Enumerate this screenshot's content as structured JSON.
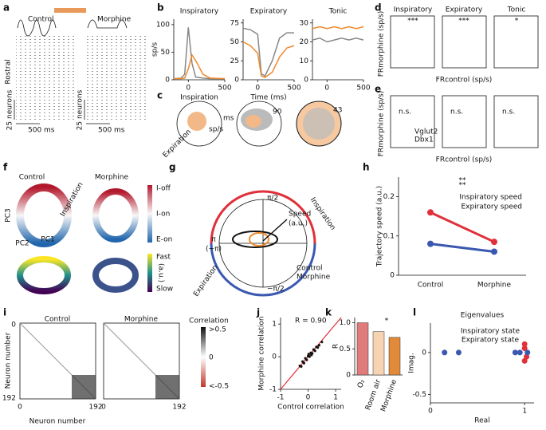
{
  "labels": {
    "panels": [
      "a",
      "b",
      "c",
      "d",
      "e",
      "f",
      "g",
      "h",
      "i",
      "j",
      "k",
      "l"
    ],
    "text": [
      "Control",
      "Morphine",
      "Rostral",
      "25 neurons",
      "500 ms",
      "25 neurons",
      "500 ms",
      "Inspiration",
      "Expiration",
      "sp/s",
      "ms",
      "90",
      "43",
      "Inspiratory",
      "Expiratory",
      "Tonic",
      "***",
      "***",
      "*",
      "FRmorphine (sp/s)",
      "FRcontrol (sp/s)",
      "n.s.",
      "n.s.",
      "n.s.",
      "Vglut2",
      "Dbx1",
      "FRmorphine (sp/s)",
      "FRcontrol (sp/s)",
      "Control",
      "Morphine",
      "Inspiration",
      "PC1",
      "PC2",
      "PC3",
      "I-off",
      "I-on",
      "E-on",
      "Fast",
      "Slow",
      "(a.u.)",
      "π/2",
      "π",
      "(−π)",
      "−π/2",
      "Speed",
      "(a.u.)",
      "Control",
      "Morphine",
      "Inspiration",
      "Expiration",
      "Control",
      "Morphine",
      "Correlation",
      ">0.5",
      "0",
      "<-0.5",
      "Neuron number",
      "Neuron number",
      "0",
      "192",
      "0",
      "192",
      "0",
      "192"
    ]
  },
  "chart_data": [
    {
      "type": "line",
      "title": "Inspiratory",
      "ylabel": "sp/s",
      "x": [
        -200,
        -100,
        -50,
        0,
        50,
        100,
        200,
        300,
        500
      ],
      "xlim": [
        -200,
        500
      ],
      "xticks": [
        0,
        500
      ],
      "ylim": [
        0,
        110
      ],
      "yticks": [
        0,
        50,
        100
      ],
      "series": [
        {
          "name": "Control",
          "color": "#888888",
          "values": [
            2,
            3,
            10,
            95,
            30,
            5,
            3,
            2,
            2
          ]
        },
        {
          "name": "Morphine",
          "color": "#f08a2c",
          "values": [
            2,
            2,
            3,
            20,
            45,
            35,
            10,
            3,
            2
          ]
        }
      ]
    },
    {
      "type": "line",
      "title": "Expiratory",
      "xlabel": "Time (ms)",
      "x": [
        -200,
        -100,
        0,
        50,
        100,
        200,
        300,
        400,
        500
      ],
      "xlim": [
        -200,
        500
      ],
      "xticks": [
        0,
        500
      ],
      "ylim": [
        0,
        80
      ],
      "yticks": [
        0,
        25,
        50,
        75
      ],
      "series": [
        {
          "name": "Control",
          "color": "#888888",
          "values": [
            68,
            66,
            60,
            8,
            5,
            25,
            55,
            62,
            62
          ]
        },
        {
          "name": "Morphine",
          "color": "#f08a2c",
          "values": [
            50,
            45,
            35,
            5,
            3,
            10,
            30,
            42,
            45
          ]
        }
      ]
    },
    {
      "type": "line",
      "title": "Tonic",
      "x": [
        -200,
        -100,
        0,
        100,
        200,
        300,
        400,
        500
      ],
      "xlim": [
        -200,
        500
      ],
      "xticks": [
        0,
        500
      ],
      "ylim": [
        0,
        32
      ],
      "yticks": [
        0,
        10,
        20,
        30
      ],
      "series": [
        {
          "name": "Control",
          "color": "#888888",
          "values": [
            21,
            22,
            20,
            21,
            22,
            21,
            22,
            21
          ]
        },
        {
          "name": "Morphine",
          "color": "#f08a2c",
          "values": [
            27,
            28,
            27,
            28,
            27,
            28,
            27,
            28
          ]
        }
      ]
    },
    {
      "type": "line",
      "ylabel": "Trajectory speed (a.u.)",
      "categories": [
        "Control",
        "Morphine"
      ],
      "ylim": [
        0,
        0.25
      ],
      "yticks": [
        0,
        0.1,
        0.2
      ],
      "annotations": [
        "**",
        "**"
      ],
      "series": [
        {
          "name": "Inspiratory speed",
          "color": "#e0303a",
          "values": [
            0.16,
            0.085
          ]
        },
        {
          "name": "Expiratory speed",
          "color": "#3a58b0",
          "values": [
            0.08,
            0.06
          ]
        }
      ]
    },
    {
      "type": "scatter",
      "xlabel": "Control correlation",
      "ylabel": "Morphine correlation",
      "annotations": [
        "R = 0.90"
      ],
      "xlim": [
        -1,
        1.2
      ],
      "xticks": [
        -1,
        0,
        1
      ],
      "ylim": [
        -1,
        1.2
      ],
      "yticks": [
        -1,
        0,
        1
      ],
      "color": "#111111",
      "x": [
        -0.3,
        -0.2,
        -0.15,
        -0.1,
        -0.05,
        0,
        0.05,
        0.1,
        0.15,
        0.2,
        0.25,
        0.3,
        0.4,
        0.5,
        -0.25,
        0.02,
        0.12,
        0.35
      ],
      "y": [
        -0.28,
        -0.15,
        -0.2,
        -0.05,
        -0.1,
        0.02,
        0.0,
        0.12,
        0.1,
        0.22,
        0.18,
        0.3,
        0.35,
        0.45,
        -0.3,
        0.08,
        0.05,
        0.28
      ]
    },
    {
      "type": "bar",
      "ylabel": "R",
      "categories": [
        "O₂",
        "Room air",
        "Morphine"
      ],
      "values": [
        1.0,
        0.83,
        0.72
      ],
      "colors": [
        "#e07b7b",
        "#f6d3b3",
        "#e08a3a"
      ],
      "ylim": [
        0,
        1.1
      ],
      "yticks": [
        0,
        0.5,
        {
          "value": 1,
          "label": "1.0"
        }
      ],
      "annotations": [
        "*"
      ]
    },
    {
      "type": "scatter",
      "title": "Eigenvalues",
      "xlabel": "Real",
      "ylabel": "Imag.",
      "xlim": [
        0,
        1.1
      ],
      "xticks": [
        0,
        1
      ],
      "ylim": [
        -0.6,
        0.35
      ],
      "yticks": [
        -0.5,
        0
      ],
      "series": [
        {
          "name": "Inspiratory state",
          "color": "#e0303a",
          "x": [
            1.0,
            1.0,
            1.02,
            1.0
          ],
          "y": [
            0.1,
            0.05,
            -0.05,
            -0.1
          ]
        },
        {
          "name": "Expiratory state",
          "color": "#3a58b0",
          "x": [
            0.15,
            0.3,
            0.9,
            0.95,
            1.03
          ],
          "y": [
            0,
            0,
            0,
            0,
            0
          ]
        }
      ]
    }
  ]
}
